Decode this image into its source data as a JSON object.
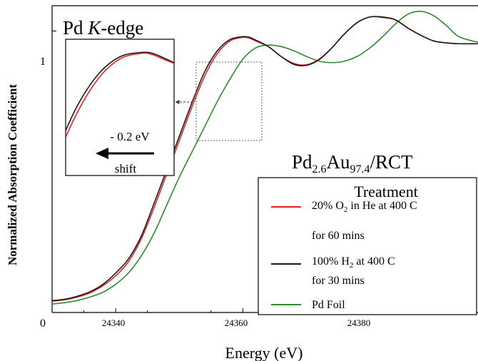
{
  "chart_data": {
    "type": "line",
    "title": "Pd K-edge",
    "title_parts": {
      "prefix": "Pd ",
      "italic": "K",
      "suffix": "-edge"
    },
    "sample_label": {
      "base": "Pd",
      "sub1": "2.6",
      "mid": "Au",
      "sub2": "97.4",
      "suffix": "/RCT"
    },
    "xlabel": "Energy (eV)",
    "ylabel": "Normalized Absorption Coefficient",
    "xlim": [
      24330,
      24397
    ],
    "ylim": [
      0,
      1.09
    ],
    "xticks": [
      "24340",
      "24360",
      "24380"
    ],
    "xtick_values": [
      24340,
      24360,
      24380
    ],
    "yticks": [
      "0",
      "1"
    ],
    "ytick_values": [
      0,
      1
    ],
    "grid": false,
    "legend": {
      "title": "Treatment",
      "placement": "bottom-right",
      "entries": [
        {
          "series": 0,
          "line1": {
            "pre": "20% O",
            "sub": "2",
            "post": " in He at 400 C"
          },
          "line2": "for 60 mins"
        },
        {
          "series": 1,
          "line1": {
            "pre": "100% H",
            "sub": "2",
            "post": " at 400 C"
          },
          "line2": "for 30 mins"
        },
        {
          "series": 2,
          "line1": {
            "pre": "Pd Foil",
            "sub": "",
            "post": ""
          },
          "line2": ""
        }
      ]
    },
    "series": [
      {
        "name": "20% O2 in He at 400 C for 60 mins",
        "color": "#e8202a",
        "x": [
          24330,
          24332,
          24334,
          24336,
          24338,
          24340,
          24342,
          24344,
          24346,
          24348,
          24350,
          24352,
          24354,
          24356,
          24358,
          24360,
          24361,
          24362,
          24364,
          24366,
          24368,
          24370,
          24372,
          24374,
          24376,
          24378,
          24380,
          24382,
          24384,
          24386,
          24388,
          24390,
          24392,
          24394,
          24397
        ],
        "y": [
          0.04,
          0.045,
          0.055,
          0.07,
          0.095,
          0.13,
          0.18,
          0.26,
          0.37,
          0.49,
          0.61,
          0.73,
          0.84,
          0.92,
          0.965,
          0.978,
          0.975,
          0.965,
          0.945,
          0.91,
          0.885,
          0.88,
          0.9,
          0.94,
          0.99,
          1.03,
          1.05,
          1.048,
          1.04,
          1.01,
          0.985,
          0.965,
          0.958,
          0.955,
          0.955
        ]
      },
      {
        "name": "100% H2 at 400 C for 30 mins",
        "color": "#1a1a1a",
        "x": [
          24330,
          24332,
          24334,
          24336,
          24338,
          24340,
          24342,
          24344,
          24346,
          24348,
          24350,
          24352,
          24354,
          24356,
          24358,
          24360,
          24361,
          24362,
          24364,
          24366,
          24368,
          24370,
          24372,
          24374,
          24376,
          24378,
          24380,
          24382,
          24384,
          24386,
          24388,
          24390,
          24392,
          24394,
          24397
        ],
        "y": [
          0.042,
          0.047,
          0.058,
          0.074,
          0.1,
          0.14,
          0.19,
          0.27,
          0.385,
          0.505,
          0.625,
          0.745,
          0.855,
          0.93,
          0.97,
          0.98,
          0.978,
          0.968,
          0.945,
          0.91,
          0.882,
          0.878,
          0.898,
          0.94,
          0.99,
          1.03,
          1.05,
          1.05,
          1.04,
          1.01,
          0.985,
          0.965,
          0.958,
          0.955,
          0.955
        ]
      },
      {
        "name": "Pd Foil",
        "color": "#2e8b2e",
        "x": [
          24330,
          24332,
          24334,
          24336,
          24338,
          24340,
          24342,
          24344,
          24346,
          24348,
          24350,
          24352,
          24354,
          24356,
          24358,
          24360,
          24362,
          24364,
          24366,
          24368,
          24370,
          24372,
          24374,
          24376,
          24378,
          24380,
          24382,
          24384,
          24386,
          24388,
          24390,
          24392,
          24394,
          24397
        ],
        "y": [
          0.03,
          0.035,
          0.043,
          0.055,
          0.072,
          0.1,
          0.14,
          0.2,
          0.28,
          0.38,
          0.48,
          0.57,
          0.66,
          0.75,
          0.83,
          0.9,
          0.94,
          0.95,
          0.945,
          0.93,
          0.91,
          0.893,
          0.888,
          0.893,
          0.91,
          0.94,
          0.98,
          1.025,
          1.06,
          1.07,
          1.055,
          1.02,
          0.98,
          0.96
        ]
      }
    ],
    "inset": {
      "xlim": [
        24353,
        24363
      ],
      "ylim": [
        0.7,
        1.01
      ],
      "annotation_value": "- 0.2 eV",
      "annotation_word": "shift"
    }
  }
}
